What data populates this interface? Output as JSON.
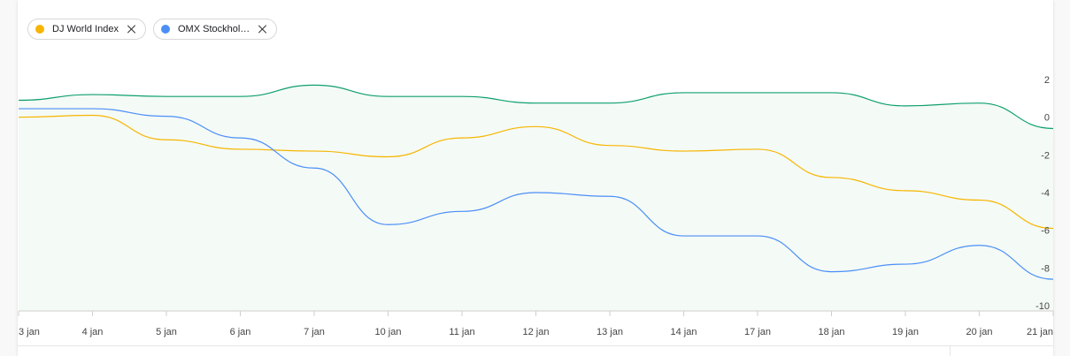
{
  "chips": [
    {
      "label": "DJ World Index",
      "color": "#f7b500",
      "icon": "close-icon"
    },
    {
      "label": "OMX Stockhol…",
      "color": "#4b8ff7",
      "icon": "close-icon"
    }
  ],
  "chart_data": {
    "type": "line",
    "categories": [
      "3 jan",
      "4 jan",
      "5 jan",
      "6 jan",
      "7 jan",
      "10 jan",
      "11 jan",
      "12 jan",
      "13 jan",
      "14 jan",
      "17 jan",
      "18 jan",
      "19 jan",
      "20 jan",
      "21 jan"
    ],
    "y_ticks": [
      2,
      0,
      -2,
      -4,
      -6,
      -8,
      -10
    ],
    "ylim": [
      -10,
      2
    ],
    "grid": false,
    "y_axis_side": "right",
    "series": [
      {
        "color": "#0e9f6e",
        "fill": "#f4faf6",
        "values": [
          0.9,
          1.2,
          1.1,
          1.1,
          1.7,
          1.1,
          1.1,
          0.75,
          0.75,
          1.3,
          1.3,
          1.3,
          0.6,
          0.75,
          -0.6
        ]
      },
      {
        "name": "DJ World Index",
        "color": "#f7b500",
        "values": [
          0.0,
          0.1,
          -1.2,
          -1.7,
          -1.8,
          -2.1,
          -1.1,
          -0.5,
          -1.5,
          -1.8,
          -1.7,
          -3.2,
          -3.9,
          -4.4,
          -5.9
        ]
      },
      {
        "name": "OMX Stockhol…",
        "color": "#4b8ff7",
        "values": [
          0.45,
          0.45,
          0.05,
          -1.1,
          -2.7,
          -5.7,
          -5.0,
          -4.0,
          -4.2,
          -6.3,
          -6.3,
          -8.2,
          -7.8,
          -6.8,
          -8.6
        ]
      }
    ]
  }
}
